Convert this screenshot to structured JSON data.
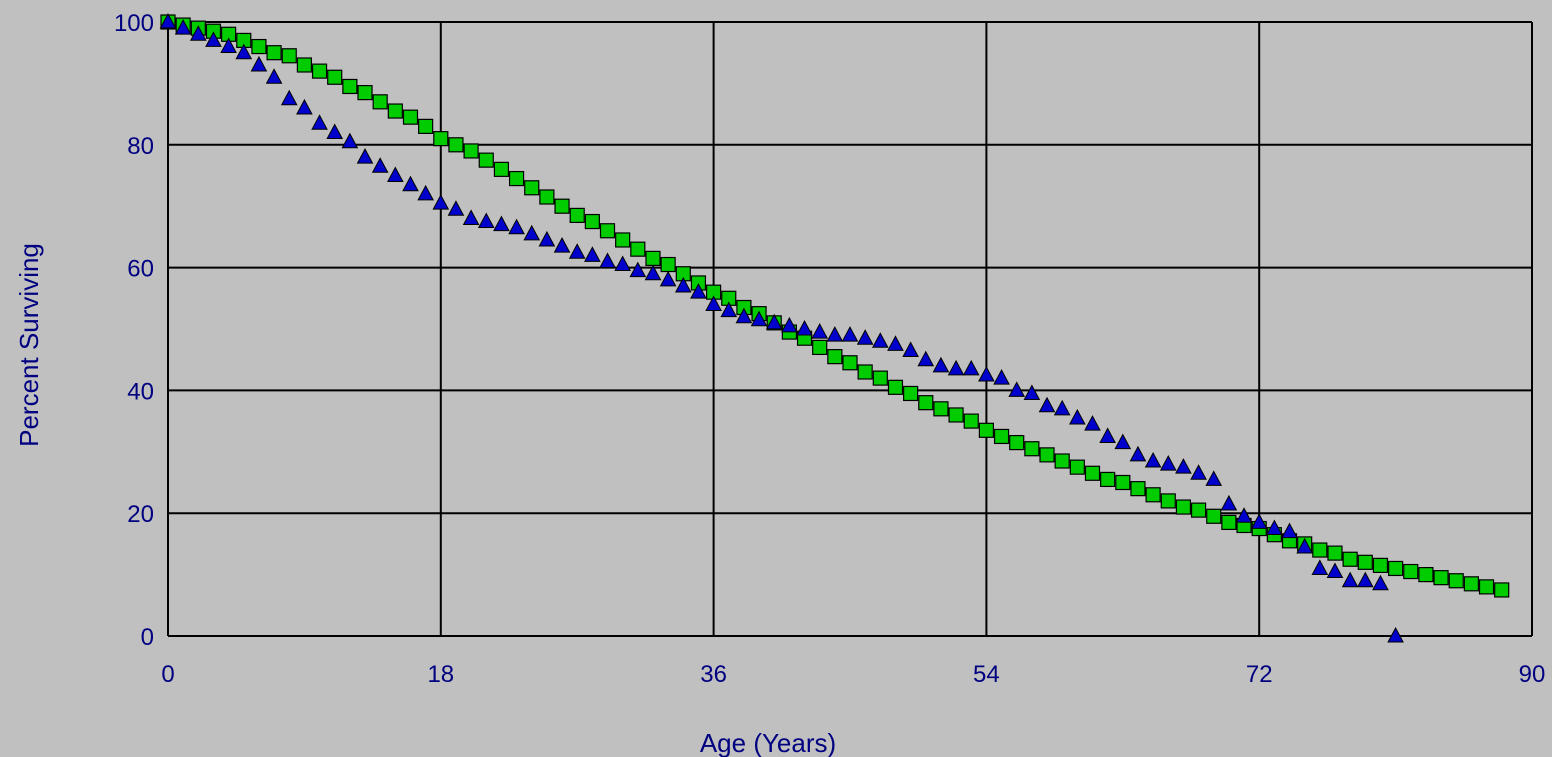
{
  "chart_data": {
    "type": "scatter",
    "title": "",
    "xlabel": "Age (Years)",
    "ylabel": "Percent Surviving",
    "xlim": [
      0,
      90
    ],
    "ylim": [
      0,
      100
    ],
    "x_ticks": [
      "0",
      "18",
      "36",
      "54",
      "72",
      "90"
    ],
    "y_ticks": [
      "0",
      "20",
      "40",
      "60",
      "80",
      "100"
    ],
    "grid": true,
    "legend": "none",
    "series": [
      {
        "marker": "triangle",
        "color": "#0000cc",
        "points": [
          [
            0,
            100
          ],
          [
            1,
            99
          ],
          [
            2,
            98
          ],
          [
            3,
            97
          ],
          [
            4,
            96
          ],
          [
            5,
            95
          ],
          [
            6,
            93
          ],
          [
            7,
            91
          ],
          [
            8,
            87.5
          ],
          [
            9,
            86
          ],
          [
            10,
            83.5
          ],
          [
            11,
            82
          ],
          [
            12,
            80.5
          ],
          [
            13,
            78
          ],
          [
            14,
            76.5
          ],
          [
            15,
            75
          ],
          [
            16,
            73.5
          ],
          [
            17,
            72
          ],
          [
            18,
            70.5
          ],
          [
            19,
            69.5
          ],
          [
            20,
            68
          ],
          [
            21,
            67.5
          ],
          [
            22,
            67
          ],
          [
            23,
            66.5
          ],
          [
            24,
            65.5
          ],
          [
            25,
            64.5
          ],
          [
            26,
            63.5
          ],
          [
            27,
            62.5
          ],
          [
            28,
            62
          ],
          [
            29,
            61
          ],
          [
            30,
            60.5
          ],
          [
            31,
            59.5
          ],
          [
            32,
            59
          ],
          [
            33,
            58
          ],
          [
            34,
            57
          ],
          [
            35,
            56
          ],
          [
            36,
            54
          ],
          [
            37,
            53
          ],
          [
            38,
            52
          ],
          [
            39,
            51.5
          ],
          [
            40,
            51
          ],
          [
            41,
            50.5
          ],
          [
            42,
            50
          ],
          [
            43,
            49.5
          ],
          [
            44,
            49
          ],
          [
            45,
            49
          ],
          [
            46,
            48.5
          ],
          [
            47,
            48
          ],
          [
            48,
            47.5
          ],
          [
            49,
            46.5
          ],
          [
            50,
            45
          ],
          [
            51,
            44
          ],
          [
            52,
            43.5
          ],
          [
            53,
            43.5
          ],
          [
            54,
            42.5
          ],
          [
            55,
            42
          ],
          [
            56,
            40
          ],
          [
            57,
            39.5
          ],
          [
            58,
            37.5
          ],
          [
            59,
            37
          ],
          [
            60,
            35.5
          ],
          [
            61,
            34.5
          ],
          [
            62,
            32.5
          ],
          [
            63,
            31.5
          ],
          [
            64,
            29.5
          ],
          [
            65,
            28.5
          ],
          [
            66,
            28
          ],
          [
            67,
            27.5
          ],
          [
            68,
            26.5
          ],
          [
            69,
            25.5
          ],
          [
            70,
            21.5
          ],
          [
            71,
            19.5
          ],
          [
            72,
            18.5
          ],
          [
            73,
            17.5
          ],
          [
            74,
            17
          ],
          [
            75,
            14.5
          ],
          [
            76,
            11
          ],
          [
            77,
            10.5
          ],
          [
            78,
            9
          ],
          [
            79,
            9
          ],
          [
            80,
            8.5
          ],
          [
            81,
            0
          ]
        ]
      },
      {
        "marker": "square",
        "color": "#00cc00",
        "points": [
          [
            0,
            100
          ],
          [
            1,
            99.5
          ],
          [
            2,
            99
          ],
          [
            3,
            98.5
          ],
          [
            4,
            98
          ],
          [
            5,
            97
          ],
          [
            6,
            96
          ],
          [
            7,
            95
          ],
          [
            8,
            94.5
          ],
          [
            9,
            93
          ],
          [
            10,
            92
          ],
          [
            11,
            91
          ],
          [
            12,
            89.5
          ],
          [
            13,
            88.5
          ],
          [
            14,
            87
          ],
          [
            15,
            85.5
          ],
          [
            16,
            84.5
          ],
          [
            17,
            83
          ],
          [
            18,
            81
          ],
          [
            19,
            80
          ],
          [
            20,
            79
          ],
          [
            21,
            77.5
          ],
          [
            22,
            76
          ],
          [
            23,
            74.5
          ],
          [
            24,
            73
          ],
          [
            25,
            71.5
          ],
          [
            26,
            70
          ],
          [
            27,
            68.5
          ],
          [
            28,
            67.5
          ],
          [
            29,
            66
          ],
          [
            30,
            64.5
          ],
          [
            31,
            63
          ],
          [
            32,
            61.5
          ],
          [
            33,
            60.5
          ],
          [
            34,
            59
          ],
          [
            35,
            57.5
          ],
          [
            36,
            56
          ],
          [
            37,
            55
          ],
          [
            38,
            53.5
          ],
          [
            39,
            52.5
          ],
          [
            40,
            51
          ],
          [
            41,
            49.5
          ],
          [
            42,
            48.5
          ],
          [
            43,
            47
          ],
          [
            44,
            45.5
          ],
          [
            45,
            44.5
          ],
          [
            46,
            43
          ],
          [
            47,
            42
          ],
          [
            48,
            40.5
          ],
          [
            49,
            39.5
          ],
          [
            50,
            38
          ],
          [
            51,
            37
          ],
          [
            52,
            36
          ],
          [
            53,
            35
          ],
          [
            54,
            33.5
          ],
          [
            55,
            32.5
          ],
          [
            56,
            31.5
          ],
          [
            57,
            30.5
          ],
          [
            58,
            29.5
          ],
          [
            59,
            28.5
          ],
          [
            60,
            27.5
          ],
          [
            61,
            26.5
          ],
          [
            62,
            25.5
          ],
          [
            63,
            25
          ],
          [
            64,
            24
          ],
          [
            65,
            23
          ],
          [
            66,
            22
          ],
          [
            67,
            21
          ],
          [
            68,
            20.5
          ],
          [
            69,
            19.5
          ],
          [
            70,
            18.5
          ],
          [
            71,
            18
          ],
          [
            72,
            17.5
          ],
          [
            73,
            16.5
          ],
          [
            74,
            15.5
          ],
          [
            75,
            15
          ],
          [
            76,
            14
          ],
          [
            77,
            13.5
          ],
          [
            78,
            12.5
          ],
          [
            79,
            12
          ],
          [
            80,
            11.5
          ],
          [
            81,
            11
          ],
          [
            82,
            10.5
          ],
          [
            83,
            10
          ],
          [
            84,
            9.5
          ],
          [
            85,
            9
          ],
          [
            86,
            8.5
          ],
          [
            87,
            8
          ],
          [
            88,
            7.5
          ]
        ]
      }
    ]
  }
}
